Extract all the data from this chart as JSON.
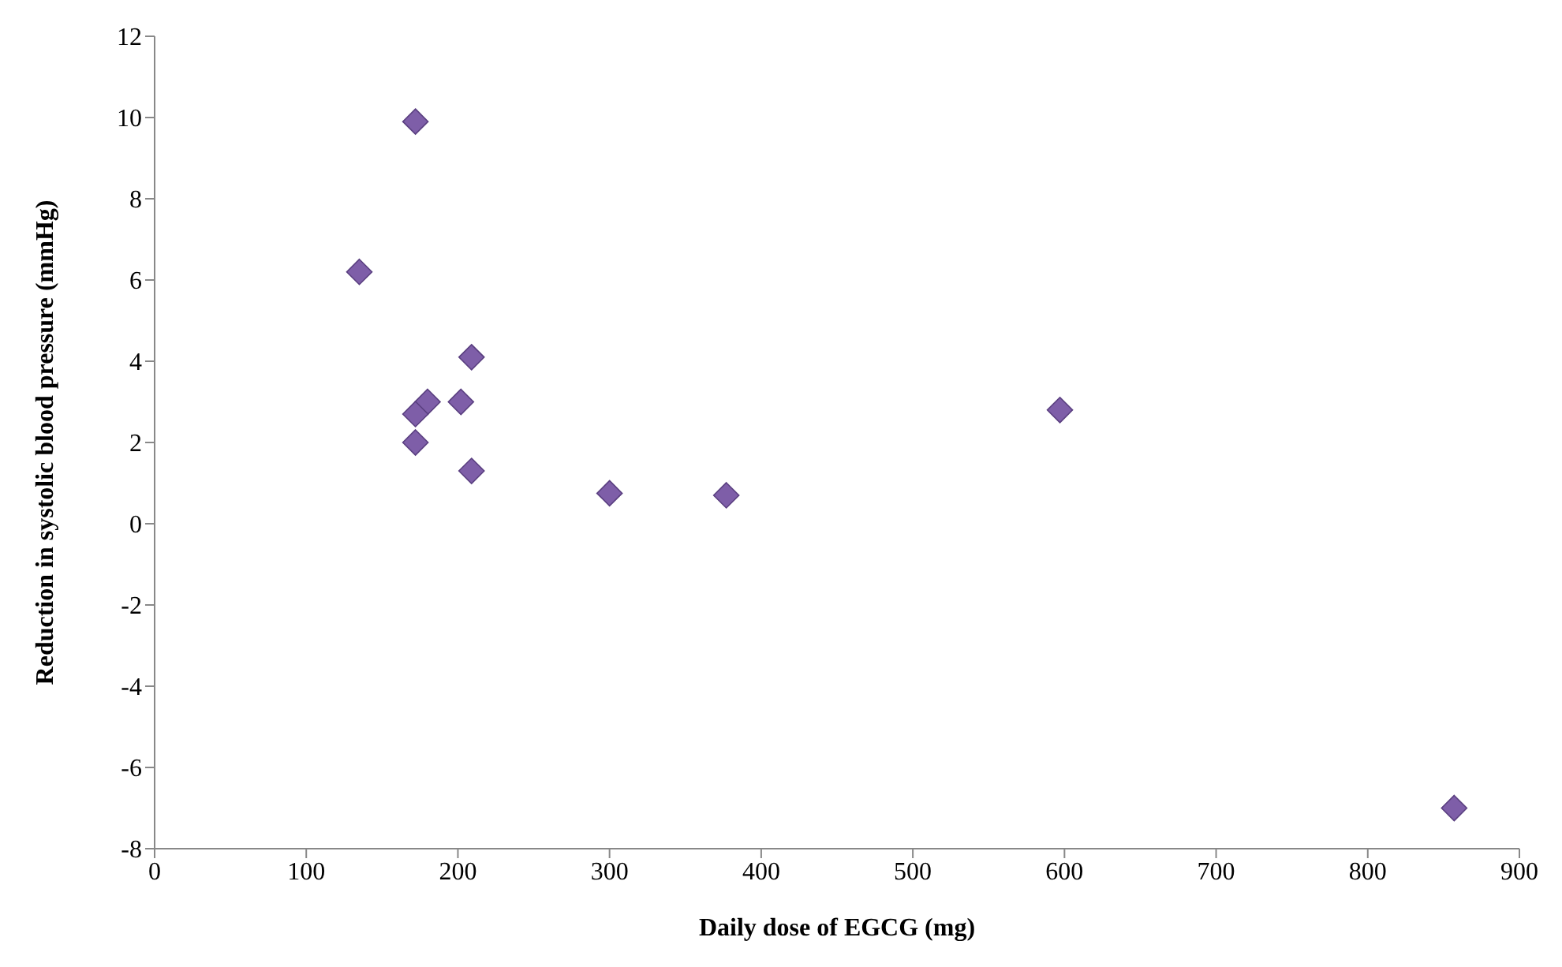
{
  "chart_data": {
    "type": "scatter",
    "xlabel": "Daily dose of EGCG (mg)",
    "ylabel": "Reduction in systolic blood pressure (mmHg)",
    "x": [
      135,
      172,
      209,
      180,
      172,
      202,
      172,
      209,
      300,
      377,
      597,
      857
    ],
    "series": [
      {
        "color": "#7e5ea8",
        "values": [
          6.2,
          9.9,
          4.1,
          3.0,
          2.7,
          3.0,
          2.0,
          1.3,
          0.75,
          0.7,
          2.8,
          -7.0
        ]
      }
    ],
    "xlim": [
      0,
      900
    ],
    "xticks": [
      0,
      100,
      200,
      300,
      400,
      500,
      600,
      700,
      800,
      900
    ],
    "ylim": [
      -8,
      12
    ],
    "yticks": [
      -8,
      -6,
      -4,
      -2,
      0,
      2,
      4,
      6,
      8,
      10,
      12
    ],
    "marker": "diamond"
  }
}
